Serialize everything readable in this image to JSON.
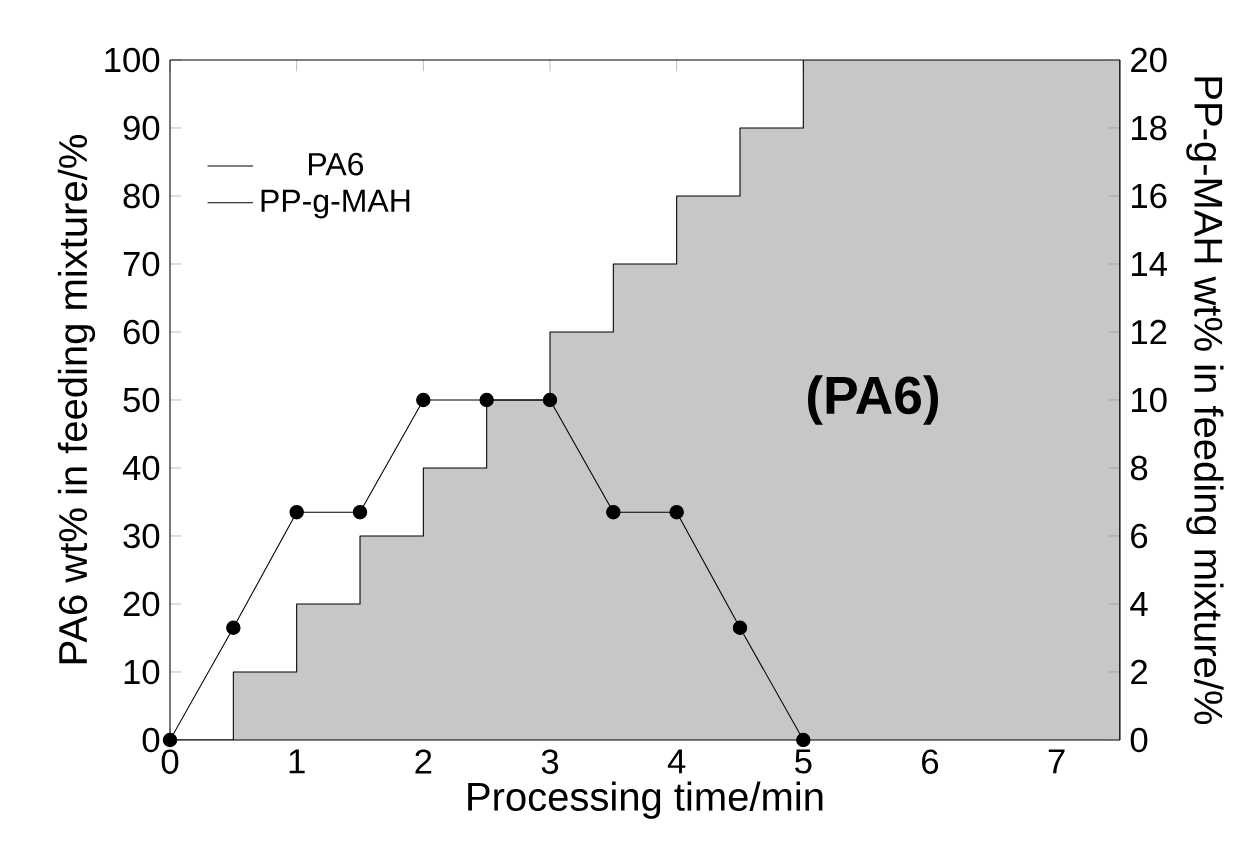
{
  "chart_data": {
    "type": "area",
    "xlabel": "Processing time/min",
    "ylabel": "PA6 wt% in feeding mixture/%",
    "y2label": "PP-g-MAH wt% in feeding mixture/%",
    "annotations": [
      "(PA6)"
    ],
    "xlim": [
      0,
      7.5
    ],
    "xticks": [
      0,
      1,
      2,
      3,
      4,
      5,
      6,
      7
    ],
    "ylim": [
      0,
      100
    ],
    "yticks": [
      0,
      10,
      20,
      30,
      40,
      50,
      60,
      70,
      80,
      90,
      100
    ],
    "y2lim": [
      0,
      20
    ],
    "y2ticks": [
      0,
      2,
      4,
      6,
      8,
      10,
      12,
      14,
      16,
      18,
      20
    ],
    "legend": "top left",
    "series": [
      {
        "name": "PA6",
        "color": "#000000",
        "x": [
          0,
          0.5,
          1,
          1.5,
          2,
          2.5,
          3,
          3.5,
          4,
          4.5,
          5,
          7.5
        ],
        "values": [
          0,
          10,
          20,
          30,
          40,
          50,
          60,
          70,
          80,
          90,
          100,
          100
        ]
      },
      {
        "name": "PP-g-MAH",
        "type": "line",
        "axis": "y2",
        "marker": "circle",
        "color": "#000000",
        "x": [
          0,
          0.5,
          1,
          1.5,
          2,
          2.5,
          3,
          3.5,
          4,
          4.5,
          5
        ],
        "values": [
          0,
          3.3,
          6.7,
          6.7,
          10,
          10,
          10,
          6.7,
          6.7,
          3.3,
          0
        ]
      }
    ]
  }
}
